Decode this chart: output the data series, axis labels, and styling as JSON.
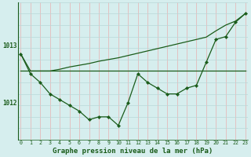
{
  "xlabel": "Graphe pression niveau de la mer (hPa)",
  "bg_color": "#d6eeee",
  "line_color": "#1a5c1a",
  "x_values": [
    0,
    1,
    2,
    3,
    4,
    5,
    6,
    7,
    8,
    9,
    10,
    11,
    12,
    13,
    14,
    15,
    16,
    17,
    18,
    19,
    20,
    21,
    22,
    23
  ],
  "series_main": [
    1012.85,
    1012.5,
    1012.35,
    1012.15,
    1012.05,
    1011.95,
    1011.85,
    1011.7,
    1011.75,
    1011.75,
    1011.6,
    1012.0,
    1012.5,
    1012.35,
    1012.25,
    1012.15,
    1012.15,
    1012.25,
    1012.3,
    1012.7,
    1013.1,
    1013.15,
    1013.4,
    1013.55
  ],
  "series_flat": [
    1012.55,
    1012.55,
    1012.55,
    1012.55,
    1012.55,
    1012.55,
    1012.55,
    1012.55,
    1012.55,
    1012.55,
    1012.55,
    1012.55,
    1012.55,
    1012.55,
    1012.55,
    1012.55,
    1012.55,
    1012.55,
    1012.55,
    1012.55,
    1012.55,
    1012.55,
    1012.55,
    1012.55
  ],
  "series_trend": [
    1012.85,
    1012.55,
    1012.55,
    1012.55,
    1012.58,
    1012.62,
    1012.65,
    1012.68,
    1012.72,
    1012.75,
    1012.78,
    1012.82,
    1012.86,
    1012.9,
    1012.94,
    1012.98,
    1013.02,
    1013.06,
    1013.1,
    1013.14,
    1013.25,
    1013.35,
    1013.42,
    1013.55
  ],
  "ylim_min": 1011.35,
  "ylim_max": 1013.75,
  "yticks": [
    1012.0,
    1013.0
  ],
  "xlim_min": -0.3,
  "xlim_max": 23.3,
  "fontsize_tick": 5.5,
  "fontsize_label": 6.5,
  "marker_size": 2.2,
  "line_width": 0.9,
  "vgrid_color": "#e8b0b0",
  "hgrid_color": "#b8d8d8"
}
